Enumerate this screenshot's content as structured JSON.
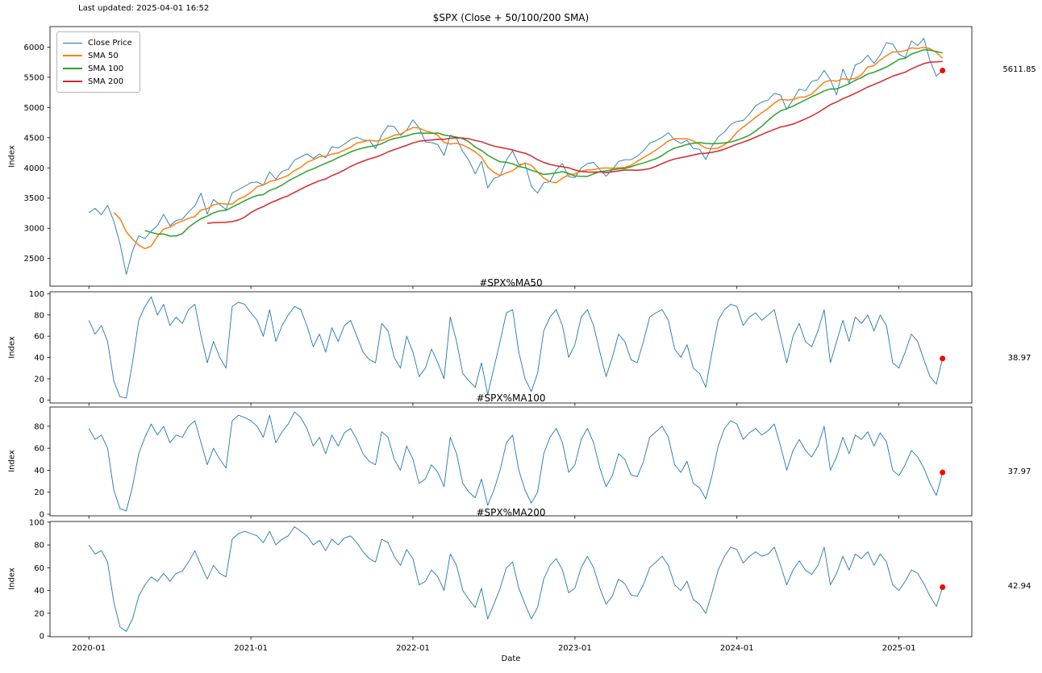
{
  "meta": {
    "last_updated": "Last updated: 2025-04-01 16:52"
  },
  "colors": {
    "close": "#1f77b4",
    "sma50": "#ff7f0e",
    "sma100": "#2ca02c",
    "sma200": "#d62728",
    "marker": "#ff0000",
    "axis": "#000000"
  },
  "legend": {
    "items": [
      {
        "label": "Close Price",
        "color": "#1f77b4",
        "thin": true
      },
      {
        "label": "SMA 50",
        "color": "#ff7f0e",
        "thin": false
      },
      {
        "label": "SMA 100",
        "color": "#2ca02c",
        "thin": false
      },
      {
        "label": "SMA 200",
        "color": "#d62728",
        "thin": false
      }
    ]
  },
  "x_axis": {
    "label": "Date",
    "unit": "decimal_year",
    "start": 2020.0,
    "step": 0.0384615,
    "xlim": [
      2019.76,
      2025.45
    ],
    "ticks": [
      {
        "x": 2020.0,
        "label": "2020-01"
      },
      {
        "x": 2021.0,
        "label": "2021-01"
      },
      {
        "x": 2022.0,
        "label": "2022-01"
      },
      {
        "x": 2023.0,
        "label": "2023-01"
      },
      {
        "x": 2024.0,
        "label": "2024-01"
      },
      {
        "x": 2025.0,
        "label": "2025-01"
      }
    ]
  },
  "chart_data": [
    {
      "type": "line",
      "title": "$SPX (Close + 50/100/200 SMA)",
      "ylabel": "Index",
      "ylim": [
        2042,
        6339
      ],
      "yticks": [
        2500,
        3000,
        3500,
        4000,
        4500,
        5000,
        5500,
        6000
      ],
      "latest_label": "5611.85",
      "series": [
        {
          "name": "Close Price",
          "color": "#1f77b4",
          "width": 0.9,
          "values": [
            3258,
            3330,
            3225,
            3380,
            3116,
            2746,
            2237,
            2627,
            2875,
            2830,
            2955,
            3044,
            3232,
            3041,
            3130,
            3152,
            3271,
            3373,
            3580,
            3237,
            3477,
            3390,
            3310,
            3585,
            3638,
            3695,
            3756,
            3768,
            3714,
            3935,
            3811,
            3943,
            3975,
            4129,
            4180,
            4233,
            4156,
            4230,
            4166,
            4352,
            4327,
            4395,
            4468,
            4509,
            4459,
            4455,
            4320,
            4545,
            4698,
            4683,
            4538,
            4621,
            4797,
            4663,
            4432,
            4419,
            4385,
            4204,
            4543,
            4488,
            4272,
            4123,
            3901,
            4109,
            3667,
            3825,
            3863,
            4130,
            4280,
            4058,
            4067,
            3693,
            3583,
            3753,
            3771,
            3965,
            4072,
            3852,
            3840,
            3999,
            4071,
            4090,
            3970,
            3862,
            3971,
            4105,
            4134,
            4136,
            4192,
            4282,
            4410,
            4450,
            4505,
            4582,
            4464,
            4406,
            4457,
            4320,
            4309,
            4137,
            4358,
            4514,
            4595,
            4719,
            4770,
            4784,
            4891,
            5027,
            5089,
            5124,
            5234,
            5204,
            4967,
            5128,
            5303,
            5278,
            5432,
            5460,
            5615,
            5459,
            5209,
            5635,
            5408,
            5703,
            5751,
            5865,
            5729,
            5871,
            6075,
            6051,
            5882,
            5827,
            6101,
            6026,
            6144,
            5770,
            5521,
            5611.85
          ]
        }
      ],
      "sma": [
        {
          "name": "SMA 50",
          "window_days": 50,
          "window_samples": 5,
          "color": "#ff7f0e"
        },
        {
          "name": "SMA 100",
          "window_days": 100,
          "window_samples": 10,
          "color": "#2ca02c"
        },
        {
          "name": "SMA 200",
          "window_days": 200,
          "window_samples": 20,
          "color": "#d62728"
        }
      ]
    },
    {
      "type": "line",
      "title": "#SPX%MA50",
      "ylabel": "Index",
      "ylim": [
        -2.8,
        101.8
      ],
      "yticks": [
        0,
        20,
        40,
        60,
        80,
        100
      ],
      "latest_label": "38.97",
      "series": [
        {
          "name": "#SPX%MA50",
          "color": "#1f77b4",
          "width": 0.9,
          "values": [
            75,
            62,
            70,
            55,
            18,
            3,
            2,
            35,
            75,
            88,
            97,
            80,
            90,
            70,
            78,
            72,
            85,
            90,
            60,
            35,
            55,
            40,
            30,
            88,
            92,
            90,
            82,
            75,
            60,
            85,
            55,
            70,
            80,
            88,
            85,
            70,
            50,
            62,
            45,
            68,
            55,
            70,
            75,
            60,
            45,
            38,
            35,
            72,
            65,
            40,
            30,
            60,
            45,
            22,
            30,
            48,
            35,
            20,
            78,
            55,
            25,
            18,
            12,
            35,
            5,
            30,
            55,
            82,
            85,
            45,
            20,
            8,
            25,
            65,
            78,
            85,
            70,
            40,
            52,
            78,
            85,
            70,
            45,
            22,
            40,
            62,
            55,
            38,
            35,
            55,
            78,
            82,
            85,
            75,
            48,
            40,
            52,
            30,
            25,
            12,
            45,
            75,
            85,
            90,
            88,
            70,
            78,
            82,
            75,
            80,
            85,
            60,
            35,
            60,
            72,
            55,
            50,
            65,
            85,
            35,
            55,
            75,
            55,
            78,
            72,
            80,
            65,
            80,
            70,
            35,
            30,
            45,
            62,
            55,
            38,
            22,
            15,
            38.97
          ]
        }
      ]
    },
    {
      "type": "line",
      "title": "#SPX%MA100",
      "ylabel": "Index",
      "ylim": [
        -1.5,
        97.5
      ],
      "yticks": [
        0,
        20,
        40,
        60,
        80
      ],
      "latest_label": "37.97",
      "series": [
        {
          "name": "#SPX%MA100",
          "color": "#1f77b4",
          "width": 0.9,
          "values": [
            78,
            68,
            72,
            60,
            22,
            5,
            3,
            25,
            55,
            70,
            82,
            72,
            80,
            65,
            72,
            70,
            80,
            85,
            65,
            45,
            60,
            50,
            42,
            85,
            90,
            88,
            85,
            80,
            70,
            90,
            65,
            75,
            82,
            93,
            88,
            78,
            62,
            70,
            55,
            72,
            62,
            74,
            78,
            68,
            55,
            48,
            45,
            75,
            70,
            50,
            40,
            62,
            50,
            28,
            32,
            45,
            38,
            25,
            70,
            55,
            28,
            20,
            15,
            32,
            8,
            22,
            40,
            65,
            72,
            40,
            22,
            10,
            20,
            55,
            70,
            78,
            65,
            38,
            45,
            68,
            78,
            65,
            42,
            25,
            35,
            55,
            50,
            36,
            34,
            48,
            70,
            75,
            80,
            70,
            45,
            38,
            48,
            28,
            24,
            14,
            35,
            62,
            78,
            85,
            82,
            68,
            74,
            78,
            72,
            76,
            82,
            62,
            40,
            58,
            68,
            58,
            52,
            62,
            80,
            40,
            52,
            70,
            55,
            72,
            68,
            75,
            62,
            74,
            66,
            40,
            35,
            45,
            58,
            52,
            42,
            28,
            17,
            37.97
          ]
        }
      ]
    },
    {
      "type": "line",
      "title": "#SPX%MA200",
      "ylabel": "Index",
      "ylim": [
        -0.6,
        100.6
      ],
      "yticks": [
        0,
        20,
        40,
        60,
        80,
        100
      ],
      "latest_label": "42.94",
      "series": [
        {
          "name": "#SPX%MA200",
          "color": "#1f77b4",
          "width": 0.9,
          "values": [
            80,
            72,
            75,
            65,
            30,
            8,
            4,
            15,
            35,
            45,
            52,
            48,
            55,
            48,
            55,
            57,
            65,
            75,
            62,
            50,
            62,
            55,
            52,
            85,
            90,
            92,
            90,
            88,
            82,
            92,
            80,
            85,
            88,
            96,
            92,
            88,
            80,
            84,
            75,
            85,
            80,
            86,
            88,
            82,
            74,
            68,
            65,
            85,
            82,
            70,
            62,
            76,
            68,
            45,
            48,
            58,
            52,
            40,
            72,
            62,
            40,
            32,
            25,
            42,
            15,
            28,
            42,
            60,
            65,
            42,
            28,
            15,
            25,
            50,
            62,
            68,
            58,
            38,
            42,
            60,
            70,
            60,
            42,
            28,
            35,
            50,
            46,
            36,
            35,
            45,
            60,
            65,
            70,
            62,
            45,
            40,
            48,
            32,
            28,
            20,
            38,
            58,
            70,
            78,
            76,
            64,
            70,
            74,
            70,
            72,
            78,
            62,
            45,
            58,
            66,
            58,
            54,
            62,
            78,
            45,
            55,
            70,
            58,
            72,
            68,
            74,
            62,
            72,
            65,
            45,
            40,
            48,
            58,
            55,
            46,
            35,
            26,
            42.94
          ]
        }
      ]
    }
  ]
}
